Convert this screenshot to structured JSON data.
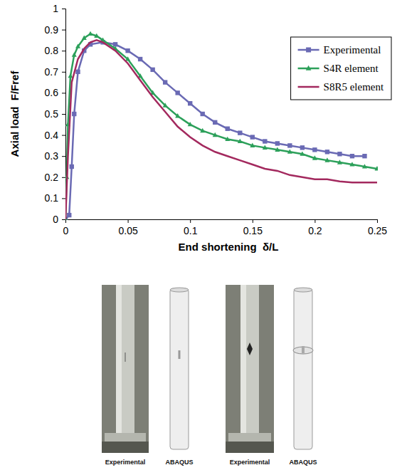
{
  "chart_data": {
    "type": "line",
    "x_label": "End shortening  δ/L",
    "y_label": "Axial load  F/Fref",
    "xlim": [
      0,
      0.25
    ],
    "ylim": [
      0,
      1
    ],
    "xticks": [
      0,
      0.05,
      0.1,
      0.15,
      0.2,
      0.25
    ],
    "yticks": [
      0,
      0.1,
      0.2,
      0.3,
      0.4,
      0.5,
      0.6,
      0.7,
      0.8,
      0.9,
      1
    ],
    "grid": false,
    "legend": "upper right",
    "series": [
      {
        "name": "Experimental",
        "color": "#6a6ab4",
        "marker": "square",
        "line_style": "solid",
        "x": [
          0,
          0.003,
          0.005,
          0.007,
          0.01,
          0.015,
          0.02,
          0.03,
          0.04,
          0.05,
          0.06,
          0.07,
          0.08,
          0.09,
          0.1,
          0.11,
          0.12,
          0.13,
          0.14,
          0.15,
          0.16,
          0.17,
          0.18,
          0.19,
          0.2,
          0.21,
          0.22,
          0.23,
          0.24
        ],
        "values": [
          0,
          0.02,
          0.25,
          0.5,
          0.7,
          0.8,
          0.83,
          0.84,
          0.83,
          0.8,
          0.76,
          0.71,
          0.65,
          0.6,
          0.55,
          0.5,
          0.46,
          0.43,
          0.41,
          0.39,
          0.37,
          0.36,
          0.35,
          0.34,
          0.33,
          0.32,
          0.31,
          0.3,
          0.3
        ]
      },
      {
        "name": "S4R element",
        "color": "#2ca05a",
        "marker": "triangle",
        "line_style": "solid",
        "x": [
          0,
          0.001,
          0.002,
          0.004,
          0.007,
          0.01,
          0.015,
          0.02,
          0.025,
          0.03,
          0.04,
          0.05,
          0.06,
          0.07,
          0.08,
          0.09,
          0.1,
          0.11,
          0.12,
          0.13,
          0.14,
          0.15,
          0.16,
          0.17,
          0.18,
          0.19,
          0.2,
          0.21,
          0.22,
          0.23,
          0.24,
          0.25
        ],
        "values": [
          0,
          0.2,
          0.45,
          0.68,
          0.78,
          0.82,
          0.86,
          0.88,
          0.87,
          0.85,
          0.81,
          0.76,
          0.68,
          0.6,
          0.54,
          0.49,
          0.45,
          0.42,
          0.4,
          0.38,
          0.37,
          0.35,
          0.34,
          0.33,
          0.32,
          0.31,
          0.29,
          0.28,
          0.27,
          0.26,
          0.25,
          0.24
        ]
      },
      {
        "name": "S8R5 element",
        "color": "#a3295e",
        "marker": "none",
        "line_style": "solid",
        "x": [
          0,
          0.002,
          0.005,
          0.01,
          0.015,
          0.02,
          0.025,
          0.03,
          0.04,
          0.05,
          0.06,
          0.07,
          0.08,
          0.09,
          0.1,
          0.11,
          0.12,
          0.13,
          0.14,
          0.15,
          0.16,
          0.17,
          0.18,
          0.19,
          0.2,
          0.21,
          0.22,
          0.23,
          0.24,
          0.25
        ],
        "values": [
          0,
          0.3,
          0.65,
          0.76,
          0.81,
          0.84,
          0.85,
          0.84,
          0.8,
          0.74,
          0.66,
          0.58,
          0.51,
          0.44,
          0.39,
          0.35,
          0.32,
          0.3,
          0.28,
          0.26,
          0.24,
          0.23,
          0.21,
          0.2,
          0.19,
          0.19,
          0.18,
          0.175,
          0.175,
          0.175
        ]
      }
    ]
  },
  "figure": {
    "captions": [
      "Experimental",
      "ABAQUS",
      "Experimental",
      "ABAQUS"
    ]
  }
}
